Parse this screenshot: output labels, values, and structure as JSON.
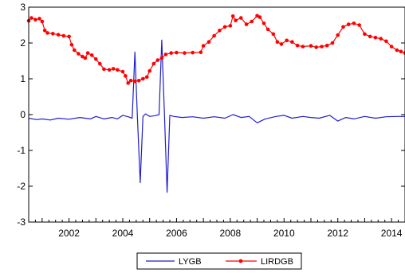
{
  "chart_data": {
    "type": "line",
    "title": "",
    "xlabel": "",
    "ylabel": "",
    "xlim": [
      2000.5,
      2014.5
    ],
    "ylim": [
      -3,
      3
    ],
    "x_ticks": [
      "2002",
      "2004",
      "2006",
      "2008",
      "2010",
      "2012",
      "2014"
    ],
    "y_ticks": [
      "3",
      "2",
      "1",
      "0",
      "-1",
      "-2",
      "-3"
    ],
    "grid": false,
    "legend_position": "bottom-center",
    "series": [
      {
        "name": "LYGB",
        "color": "#1f1fd0",
        "marker": "none",
        "points": [
          [
            2000.5,
            -0.1
          ],
          [
            2000.8,
            -0.14
          ],
          [
            2001.0,
            -0.12
          ],
          [
            2001.3,
            -0.15
          ],
          [
            2001.6,
            -0.1
          ],
          [
            2002.0,
            -0.13
          ],
          [
            2002.4,
            -0.08
          ],
          [
            2002.8,
            -0.12
          ],
          [
            2003.0,
            -0.05
          ],
          [
            2003.3,
            -0.12
          ],
          [
            2003.6,
            -0.08
          ],
          [
            2003.8,
            -0.12
          ],
          [
            2004.0,
            -0.02
          ],
          [
            2004.2,
            -0.06
          ],
          [
            2004.35,
            -0.1
          ],
          [
            2004.45,
            1.75
          ],
          [
            2004.55,
            -0.15
          ],
          [
            2004.65,
            -1.9
          ],
          [
            2004.75,
            -0.05
          ],
          [
            2004.85,
            0.02
          ],
          [
            2005.0,
            -0.05
          ],
          [
            2005.2,
            -0.03
          ],
          [
            2005.35,
            0.0
          ],
          [
            2005.45,
            2.08
          ],
          [
            2005.55,
            0.0
          ],
          [
            2005.65,
            -2.17
          ],
          [
            2005.75,
            -0.02
          ],
          [
            2005.9,
            -0.05
          ],
          [
            2006.2,
            -0.08
          ],
          [
            2006.6,
            -0.06
          ],
          [
            2007.0,
            -0.1
          ],
          [
            2007.4,
            -0.06
          ],
          [
            2007.8,
            -0.1
          ],
          [
            2008.1,
            0.0
          ],
          [
            2008.4,
            -0.08
          ],
          [
            2008.7,
            -0.05
          ],
          [
            2009.0,
            -0.23
          ],
          [
            2009.3,
            -0.12
          ],
          [
            2009.7,
            -0.05
          ],
          [
            2010.0,
            -0.02
          ],
          [
            2010.3,
            -0.1
          ],
          [
            2010.7,
            -0.05
          ],
          [
            2011.0,
            -0.08
          ],
          [
            2011.3,
            -0.1
          ],
          [
            2011.7,
            -0.02
          ],
          [
            2012.0,
            -0.18
          ],
          [
            2012.3,
            -0.08
          ],
          [
            2012.6,
            -0.12
          ],
          [
            2013.0,
            -0.05
          ],
          [
            2013.4,
            -0.1
          ],
          [
            2013.8,
            -0.06
          ],
          [
            2014.2,
            -0.05
          ],
          [
            2014.5,
            -0.05
          ]
        ]
      },
      {
        "name": "LIRDGB",
        "color": "#ff0000",
        "marker": "circle",
        "points": [
          [
            2000.5,
            2.62
          ],
          [
            2000.6,
            2.7
          ],
          [
            2000.75,
            2.65
          ],
          [
            2000.9,
            2.68
          ],
          [
            2001.0,
            2.6
          ],
          [
            2001.1,
            2.35
          ],
          [
            2001.2,
            2.28
          ],
          [
            2001.4,
            2.26
          ],
          [
            2001.6,
            2.23
          ],
          [
            2001.8,
            2.2
          ],
          [
            2002.0,
            2.18
          ],
          [
            2002.1,
            1.95
          ],
          [
            2002.2,
            1.8
          ],
          [
            2002.35,
            1.7
          ],
          [
            2002.5,
            1.62
          ],
          [
            2002.6,
            1.58
          ],
          [
            2002.7,
            1.72
          ],
          [
            2002.85,
            1.66
          ],
          [
            2003.0,
            1.55
          ],
          [
            2003.15,
            1.42
          ],
          [
            2003.3,
            1.27
          ],
          [
            2003.5,
            1.25
          ],
          [
            2003.65,
            1.28
          ],
          [
            2003.8,
            1.25
          ],
          [
            2004.0,
            1.2
          ],
          [
            2004.1,
            1.08
          ],
          [
            2004.2,
            0.88
          ],
          [
            2004.3,
            0.95
          ],
          [
            2004.45,
            0.93
          ],
          [
            2004.6,
            0.95
          ],
          [
            2004.75,
            1.0
          ],
          [
            2004.9,
            1.05
          ],
          [
            2005.0,
            1.22
          ],
          [
            2005.15,
            1.42
          ],
          [
            2005.3,
            1.52
          ],
          [
            2005.45,
            1.58
          ],
          [
            2005.6,
            1.68
          ],
          [
            2005.8,
            1.72
          ],
          [
            2006.0,
            1.73
          ],
          [
            2006.3,
            1.72
          ],
          [
            2006.6,
            1.73
          ],
          [
            2006.9,
            1.74
          ],
          [
            2007.0,
            1.92
          ],
          [
            2007.2,
            2.03
          ],
          [
            2007.4,
            2.2
          ],
          [
            2007.6,
            2.35
          ],
          [
            2007.8,
            2.45
          ],
          [
            2008.0,
            2.48
          ],
          [
            2008.1,
            2.75
          ],
          [
            2008.2,
            2.63
          ],
          [
            2008.4,
            2.7
          ],
          [
            2008.6,
            2.52
          ],
          [
            2008.8,
            2.6
          ],
          [
            2009.0,
            2.76
          ],
          [
            2009.1,
            2.72
          ],
          [
            2009.25,
            2.55
          ],
          [
            2009.4,
            2.38
          ],
          [
            2009.6,
            2.25
          ],
          [
            2009.75,
            2.03
          ],
          [
            2009.9,
            1.97
          ],
          [
            2010.1,
            2.07
          ],
          [
            2010.3,
            2.03
          ],
          [
            2010.5,
            1.93
          ],
          [
            2010.7,
            1.9
          ],
          [
            2011.0,
            1.92
          ],
          [
            2011.2,
            1.88
          ],
          [
            2011.4,
            1.9
          ],
          [
            2011.6,
            1.93
          ],
          [
            2011.8,
            2.0
          ],
          [
            2012.0,
            2.22
          ],
          [
            2012.2,
            2.45
          ],
          [
            2012.4,
            2.52
          ],
          [
            2012.6,
            2.55
          ],
          [
            2012.8,
            2.5
          ],
          [
            2013.0,
            2.25
          ],
          [
            2013.2,
            2.18
          ],
          [
            2013.4,
            2.15
          ],
          [
            2013.6,
            2.12
          ],
          [
            2013.8,
            2.05
          ],
          [
            2014.0,
            1.9
          ],
          [
            2014.2,
            1.8
          ],
          [
            2014.35,
            1.76
          ],
          [
            2014.5,
            1.72
          ]
        ]
      }
    ]
  }
}
